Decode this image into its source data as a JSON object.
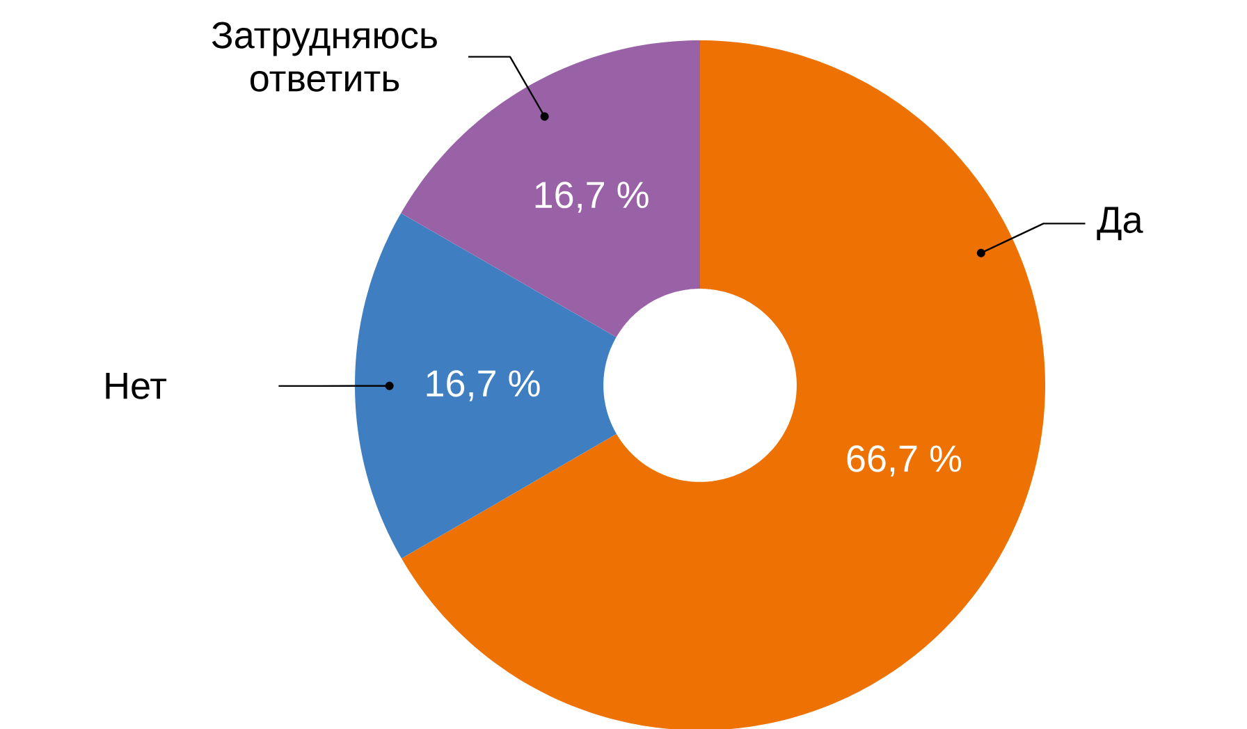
{
  "chart_data": {
    "type": "donut",
    "categories": [
      "Да",
      "Нет",
      "Затрудняюсь ответить"
    ],
    "values": [
      66.7,
      16.7,
      16.7
    ],
    "colors": [
      "#ee7203",
      "#3f7fc1",
      "#9a62a6"
    ],
    "value_labels": [
      "66,7 %",
      "16,7 %",
      "16,7 %"
    ]
  }
}
